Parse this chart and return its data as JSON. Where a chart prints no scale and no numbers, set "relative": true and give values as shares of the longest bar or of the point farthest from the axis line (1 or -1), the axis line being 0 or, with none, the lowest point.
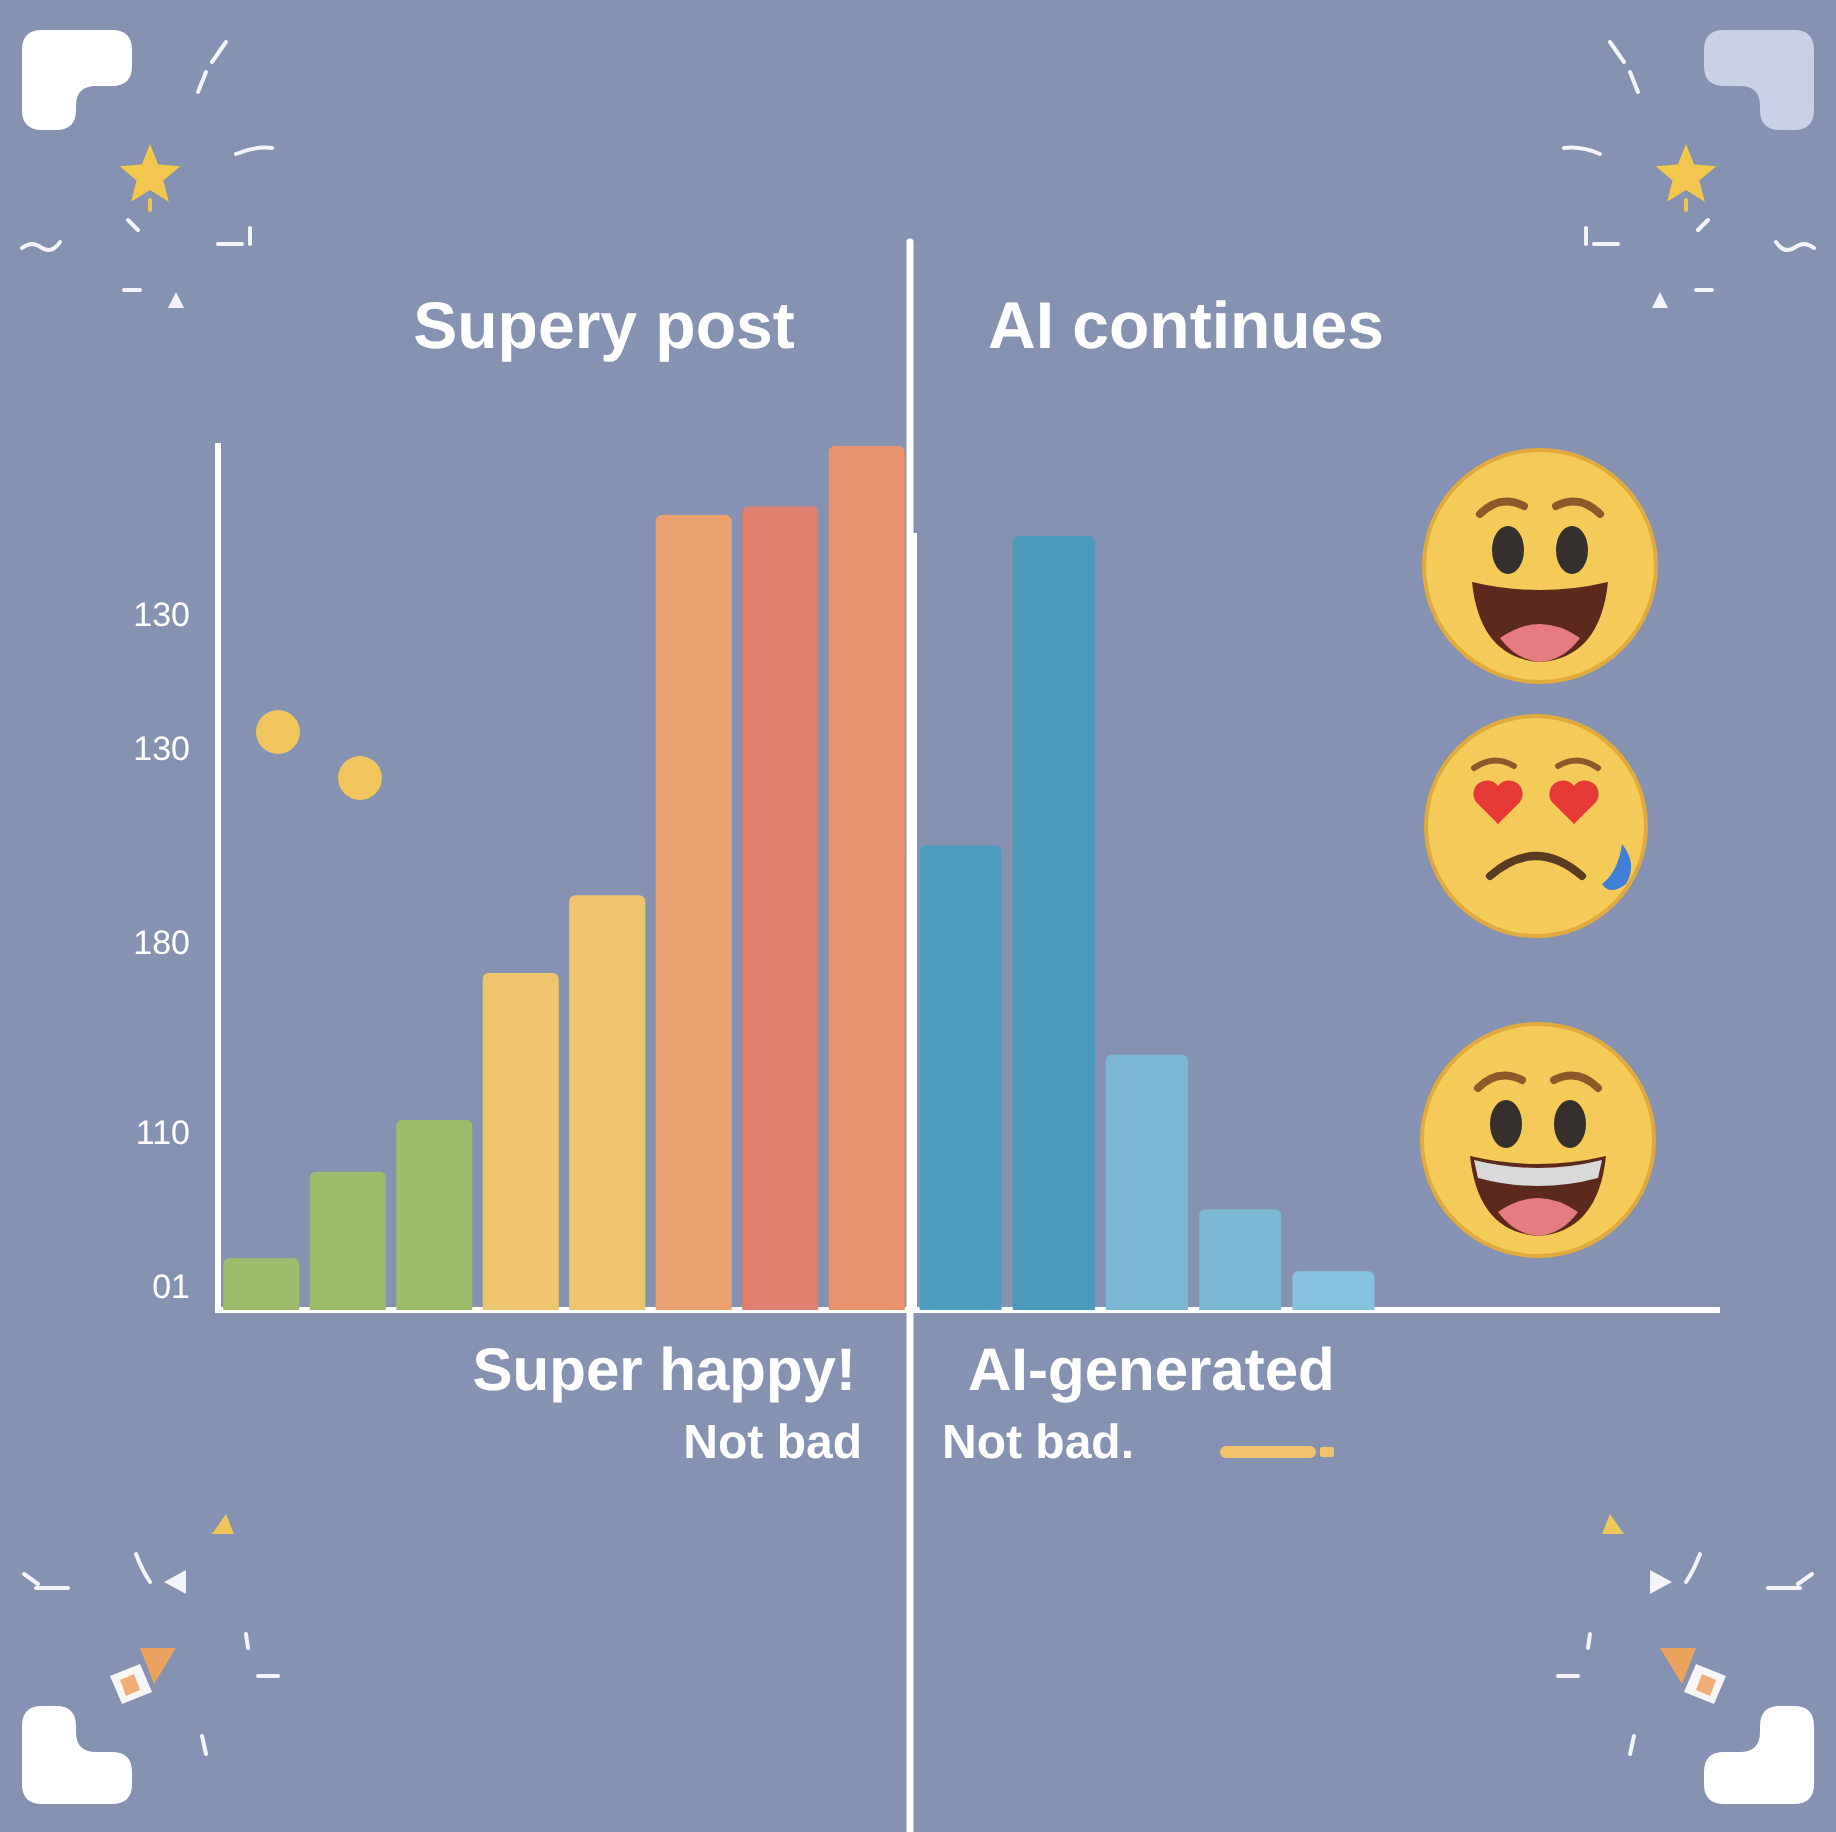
{
  "chart_data": [
    {
      "type": "bar",
      "title": "Supery post",
      "xlabel": "Super happy!",
      "annotations": [
        "130",
        "130",
        "180",
        "110",
        "01",
        "Not bad"
      ],
      "categories": [
        null,
        null,
        null,
        null,
        null,
        null,
        null,
        null
      ],
      "values": [
        0.06,
        0.16,
        0.22,
        0.39,
        0.48,
        0.92,
        0.93,
        1.0
      ],
      "colors": [
        "#9dbc6b",
        "#9dbc6b",
        "#9dbc6b",
        "#eec46c",
        "#eec46c",
        "#eba06f",
        "#de7f6f",
        "#e8926e"
      ],
      "relative": true,
      "tick_labels": false
    },
    {
      "type": "bar",
      "title": "AI continues",
      "xlabel": "AI-generated",
      "annotations": [
        "Not bad."
      ],
      "categories": [
        null,
        null,
        null,
        null,
        null
      ],
      "values": [
        0.6,
        1.0,
        0.33,
        0.13,
        0.05
      ],
      "colors": [
        "#4e9dbf",
        "#4a9abd",
        "#7bb6d2",
        "#7cb8d4",
        "#85c2de"
      ],
      "relative": true,
      "tick_labels": false
    }
  ]
}
